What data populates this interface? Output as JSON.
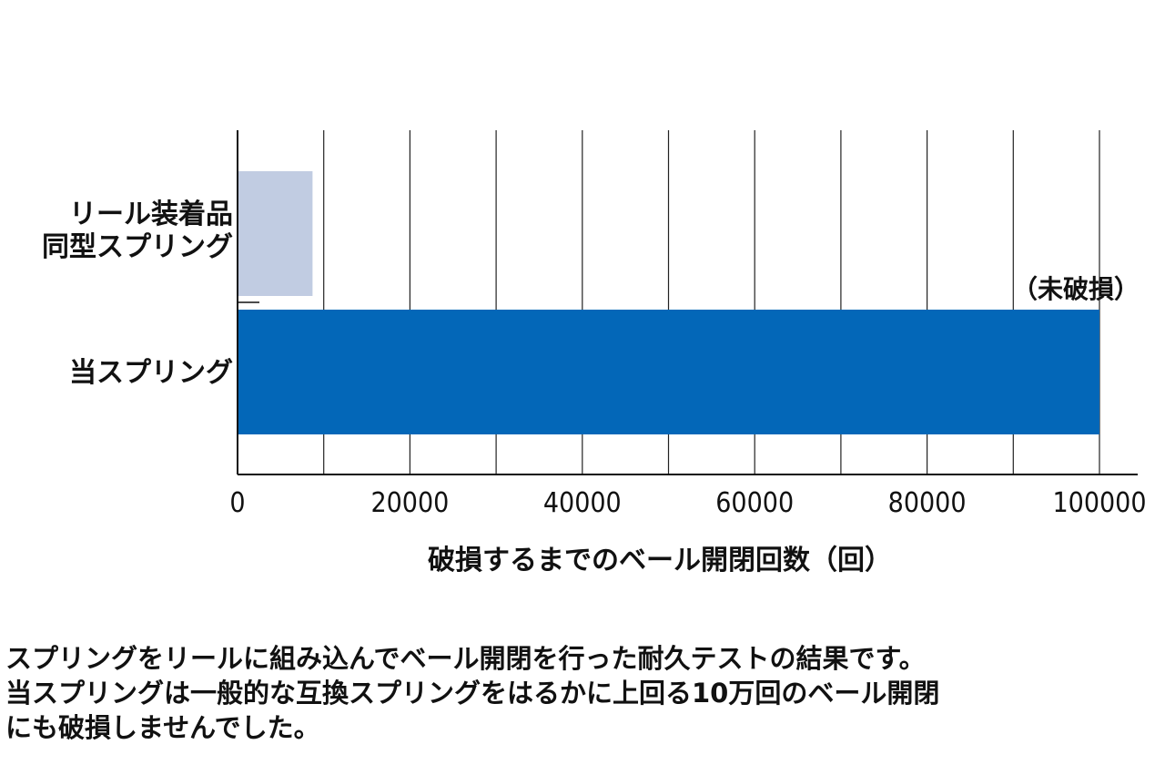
{
  "chart_data": {
    "type": "bar",
    "orientation": "horizontal",
    "categories": [
      "リール装着品\n同型スプリング",
      "当スプリング"
    ],
    "values": [
      8700,
      100000
    ],
    "colors": [
      "#c1cce2",
      "#0367b8"
    ],
    "xlim": [
      0,
      100000
    ],
    "xticks": [
      0,
      20000,
      40000,
      60000,
      80000,
      100000
    ],
    "xtick_labels": [
      "0",
      "20000",
      "40000",
      "60000",
      "80000",
      "100000"
    ],
    "minor_grid_step": 10000,
    "grid": true,
    "xlabel": "破損するまでのベール開閉回数（回）",
    "annotation": "（未破損）"
  },
  "caption": "スプリングをリールに組み込んでベール開閉を行った耐久テストの結果です。\n当スプリングは一般的な互換スプリングをはるかに上回る10万回のベール開閉\nにも破損しませんでした。"
}
